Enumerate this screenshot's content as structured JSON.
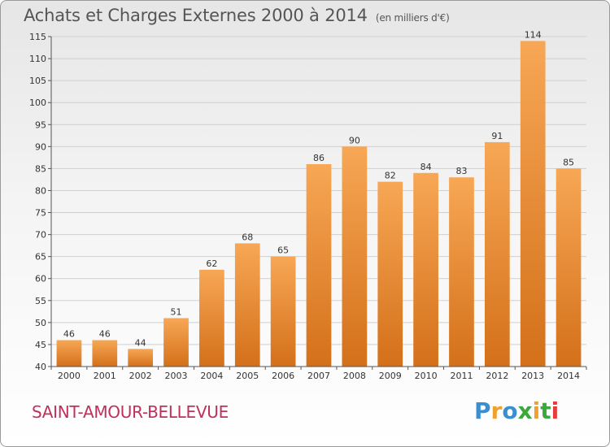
{
  "header": {
    "title": "Achats et Charges Externes 2000 à 2014",
    "subtitle": "(en milliers d'€)"
  },
  "footer": {
    "commune": "SAINT-AMOUR-BELLEVUE",
    "brand_letters": [
      {
        "char": "P",
        "color": "#3a8fd0"
      },
      {
        "char": "r",
        "color": "#f0a030"
      },
      {
        "char": "o",
        "color": "#3a8fd0"
      },
      {
        "char": "x",
        "color": "#3aa83a"
      },
      {
        "char": "i",
        "color": "#f0a030"
      },
      {
        "char": "t",
        "color": "#3aa83a"
      },
      {
        "char": "i",
        "color": "#e83a3a"
      }
    ]
  },
  "chart_data": {
    "type": "bar",
    "title": "Achats et Charges Externes 2000 à 2014",
    "subtitle": "(en milliers d'€)",
    "categories": [
      "2000",
      "2001",
      "2002",
      "2003",
      "2004",
      "2005",
      "2006",
      "2007",
      "2008",
      "2009",
      "2010",
      "2011",
      "2012",
      "2013",
      "2014"
    ],
    "values": [
      46,
      46,
      44,
      51,
      62,
      68,
      65,
      86,
      90,
      82,
      84,
      83,
      91,
      114,
      85
    ],
    "ylim": [
      40,
      115
    ],
    "yticks": [
      40,
      45,
      50,
      55,
      60,
      65,
      70,
      75,
      80,
      85,
      90,
      95,
      100,
      105,
      110,
      115
    ],
    "grid": true,
    "bar_color_top": "#f7a755",
    "bar_color_bottom": "#d4701a"
  }
}
